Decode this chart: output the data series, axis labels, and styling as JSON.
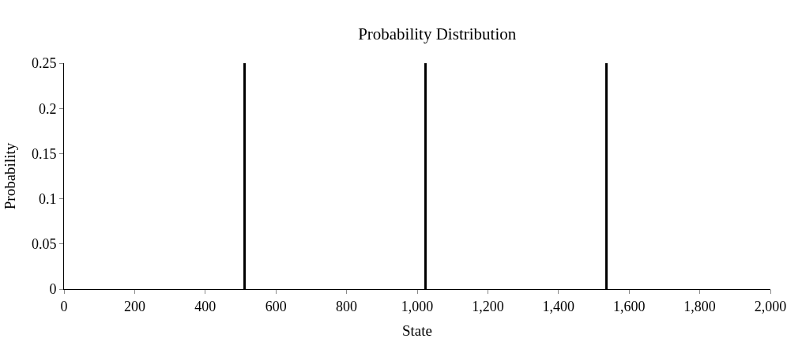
{
  "chart_data": {
    "type": "bar",
    "title": "Probability Distribution",
    "xlabel": "State",
    "ylabel": "Probability",
    "x": [
      512,
      1024,
      1536
    ],
    "values": [
      0.25,
      0.25,
      0.25
    ],
    "color": "#000000",
    "xlim": [
      0,
      2000
    ],
    "xticks": [
      0,
      {
        "value": 200,
        "label": "200"
      },
      {
        "value": 400,
        "label": "400"
      },
      {
        "value": 600,
        "label": "600"
      },
      {
        "value": 800,
        "label": "800"
      },
      {
        "value": 1000,
        "label": "1,000"
      },
      {
        "value": 1200,
        "label": "1,200"
      },
      {
        "value": 1400,
        "label": "1,400"
      },
      {
        "value": 1600,
        "label": "1,600"
      },
      {
        "value": 1800,
        "label": "1,800"
      },
      {
        "value": 2000,
        "label": "2,000"
      }
    ],
    "ylim": [
      0,
      0.25
    ],
    "yticks": [
      0,
      0.05,
      0.1,
      0.15,
      0.2,
      0.25
    ]
  }
}
